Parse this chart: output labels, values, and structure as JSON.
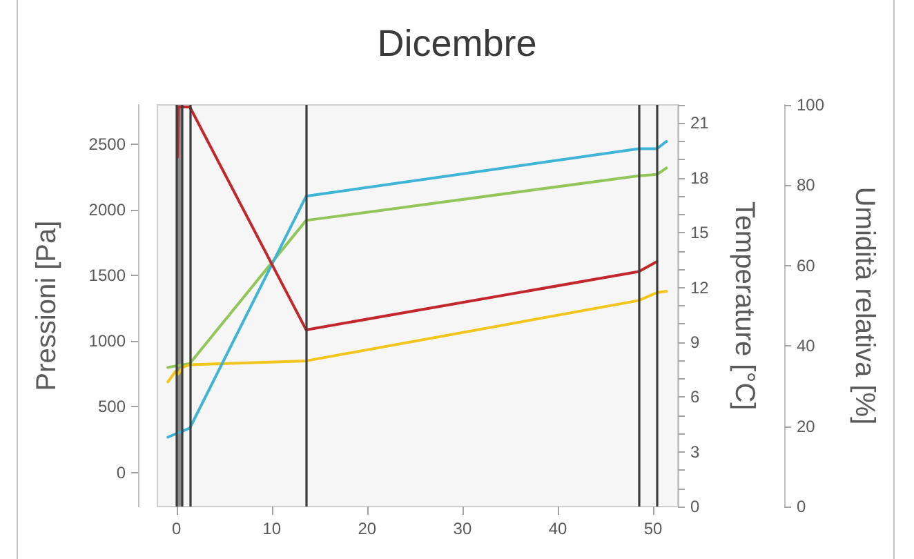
{
  "chart_data": {
    "type": "line",
    "title": "Dicembre",
    "ylabel": "Pressioni [Pa]",
    "y2label": "Temperature [°C]",
    "y3label": "Umidità relativa [%]",
    "xlim": [
      -2,
      52.6
    ],
    "xticks": [
      0,
      10,
      20,
      30,
      40,
      50
    ],
    "ylim": [
      -260,
      2800
    ],
    "yticks": [
      0,
      500,
      1000,
      1500,
      2000,
      2500
    ],
    "y2lim": [
      0,
      22
    ],
    "y2ticks": [
      0,
      {
        "value": 1,
        "label": null
      },
      {
        "value": 2,
        "label": null
      },
      3,
      {
        "value": 4,
        "label": null
      },
      {
        "value": 5,
        "label": null
      },
      6,
      {
        "value": 7,
        "label": null
      },
      {
        "value": 8,
        "label": null
      },
      9,
      {
        "value": 10,
        "label": null
      },
      {
        "value": 11,
        "label": null
      },
      12,
      {
        "value": 13,
        "label": null
      },
      {
        "value": 14,
        "label": null
      },
      15,
      {
        "value": 16,
        "label": null
      },
      {
        "value": 17,
        "label": null
      },
      18,
      {
        "value": 19,
        "label": null
      },
      {
        "value": 20,
        "label": null
      },
      21,
      {
        "value": 22,
        "label": null
      }
    ],
    "y3lim": [
      0,
      100
    ],
    "y3ticks": [
      0,
      20,
      40,
      60,
      80,
      100
    ],
    "series": [
      {
        "color": "#93c55b",
        "axis": "y",
        "x": [
          -0.9,
          1.4,
          13.6,
          48.5,
          50.4,
          51.4
        ],
        "values": [
          800,
          830,
          1920,
          2260,
          2270,
          2320
        ]
      },
      {
        "color": "#f2c51c",
        "axis": "y",
        "x": [
          -0.9,
          -0.1,
          0.2,
          0.6,
          1.4,
          13.6,
          48.5,
          50.4,
          51.4
        ],
        "values": [
          690,
          770,
          750,
          800,
          820,
          850,
          1310,
          1370,
          1380
        ]
      },
      {
        "color": "#3fb4d6",
        "axis": "y2",
        "x": [
          -0.9,
          1.4,
          13.6,
          48.5,
          50.4,
          51.4
        ],
        "values": [
          3.8,
          4.3,
          17.0,
          19.6,
          19.6,
          20.0
        ]
      },
      {
        "color": "#c1272d",
        "axis": "y3",
        "x": [
          0.1,
          0.2,
          1.4,
          13.6,
          48.5,
          50.4
        ],
        "values": [
          87,
          99.5,
          99.5,
          44,
          58.5,
          61
        ]
      }
    ],
    "ref_lines": [
      {
        "axis": "x",
        "value": 0
      },
      {
        "axis": "x",
        "value": 0.6
      },
      {
        "axis": "x",
        "value": 1.4
      },
      {
        "axis": "x",
        "value": 13.6
      },
      {
        "axis": "x",
        "value": 48.5
      },
      {
        "axis": "x",
        "value": 50.4
      }
    ],
    "bands": [
      {
        "axis": "x",
        "from": 0,
        "to": 0.6,
        "color": "#8c8c8c"
      }
    ],
    "grid": false,
    "marker": "none",
    "line_style": "solid"
  }
}
